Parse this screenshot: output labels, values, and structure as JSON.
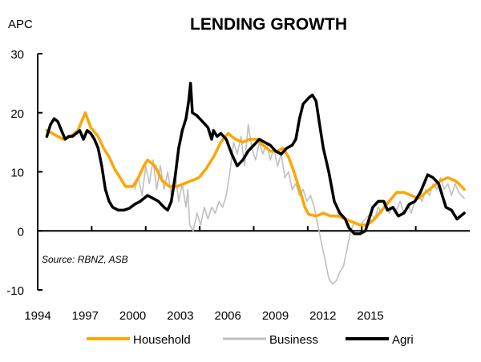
{
  "chart_data": {
    "type": "line",
    "title": "LENDING GROWTH",
    "ylabel": "APC",
    "xlabel": "",
    "source_note": "Source:  RBNZ, ASB",
    "ylim": [
      -10,
      30
    ],
    "yticks": [
      30,
      20,
      10,
      0,
      -10
    ],
    "xlim": [
      1994,
      2017.6
    ],
    "xtick_labels": [
      "1994",
      "1997",
      "2000",
      "2003",
      "2006",
      "2009",
      "2012",
      "2015"
    ],
    "grid": false,
    "legend_position": "bottom",
    "series": [
      {
        "name": "Household",
        "color": "#FFA500",
        "points": [
          [
            1994.5,
            17
          ],
          [
            1994.8,
            16.5
          ],
          [
            1995.1,
            16
          ],
          [
            1995.4,
            15.5
          ],
          [
            1995.8,
            16
          ],
          [
            1996.2,
            17
          ],
          [
            1996.6,
            20
          ],
          [
            1996.9,
            17.5
          ],
          [
            1997.3,
            16
          ],
          [
            1997.6,
            14
          ],
          [
            1997.9,
            12.5
          ],
          [
            1998.2,
            10.5
          ],
          [
            1998.5,
            9
          ],
          [
            1998.8,
            7.5
          ],
          [
            1999.2,
            7.5
          ],
          [
            1999.5,
            9
          ],
          [
            1999.8,
            11
          ],
          [
            2000.0,
            12
          ],
          [
            2000.4,
            11
          ],
          [
            2000.8,
            8.5
          ],
          [
            2001.2,
            7.5
          ],
          [
            2001.6,
            7.5
          ],
          [
            2002.0,
            8
          ],
          [
            2002.4,
            8.5
          ],
          [
            2002.8,
            9
          ],
          [
            2003.2,
            10.5
          ],
          [
            2003.6,
            12.5
          ],
          [
            2004.0,
            15
          ],
          [
            2004.4,
            16.5
          ],
          [
            2004.8,
            15.5
          ],
          [
            2005.2,
            15
          ],
          [
            2005.6,
            15.5
          ],
          [
            2006.0,
            15.5
          ],
          [
            2006.3,
            14.5
          ],
          [
            2006.7,
            13.5
          ],
          [
            2007.1,
            13.5
          ],
          [
            2007.4,
            14
          ],
          [
            2007.7,
            12.5
          ],
          [
            2008.0,
            10
          ],
          [
            2008.3,
            7
          ],
          [
            2008.6,
            4
          ],
          [
            2008.8,
            2.8
          ],
          [
            2009.2,
            2.5
          ],
          [
            2009.6,
            3
          ],
          [
            2010.0,
            2.5
          ],
          [
            2010.4,
            2.5
          ],
          [
            2010.8,
            2
          ],
          [
            2011.2,
            1.5
          ],
          [
            2011.6,
            1
          ],
          [
            2012.0,
            1
          ],
          [
            2012.4,
            2
          ],
          [
            2012.8,
            3.5
          ],
          [
            2013.2,
            5
          ],
          [
            2013.6,
            6.5
          ],
          [
            2014.0,
            6.5
          ],
          [
            2014.4,
            6
          ],
          [
            2014.8,
            5.5
          ],
          [
            2015.2,
            6.5
          ],
          [
            2015.6,
            7.5
          ],
          [
            2016.0,
            8.5
          ],
          [
            2016.4,
            9
          ],
          [
            2016.8,
            8.5
          ],
          [
            2017.0,
            8
          ],
          [
            2017.3,
            7
          ]
        ]
      },
      {
        "name": "Business",
        "color": "#BFBFBF",
        "points": [
          [
            1999.3,
            7
          ],
          [
            1999.5,
            9
          ],
          [
            1999.7,
            6
          ],
          [
            1999.9,
            11
          ],
          [
            2000.1,
            8
          ],
          [
            2000.3,
            12
          ],
          [
            2000.5,
            7
          ],
          [
            2000.7,
            11
          ],
          [
            2000.9,
            7
          ],
          [
            2001.1,
            10
          ],
          [
            2001.3,
            6
          ],
          [
            2001.5,
            10
          ],
          [
            2001.7,
            5
          ],
          [
            2001.9,
            8
          ],
          [
            2002.1,
            4
          ],
          [
            2002.2,
            7
          ],
          [
            2002.3,
            1
          ],
          [
            2002.5,
            0
          ],
          [
            2002.7,
            3
          ],
          [
            2002.9,
            1
          ],
          [
            2003.1,
            4
          ],
          [
            2003.3,
            2
          ],
          [
            2003.5,
            4
          ],
          [
            2003.7,
            3
          ],
          [
            2003.9,
            5
          ],
          [
            2004.1,
            4
          ],
          [
            2004.3,
            6
          ],
          [
            2004.5,
            10
          ],
          [
            2004.7,
            15
          ],
          [
            2004.9,
            13
          ],
          [
            2005.1,
            16
          ],
          [
            2005.3,
            11
          ],
          [
            2005.5,
            18
          ],
          [
            2005.7,
            14
          ],
          [
            2005.9,
            12
          ],
          [
            2006.1,
            15
          ],
          [
            2006.3,
            13
          ],
          [
            2006.5,
            15
          ],
          [
            2006.7,
            12
          ],
          [
            2006.9,
            14
          ],
          [
            2007.1,
            11
          ],
          [
            2007.3,
            13
          ],
          [
            2007.5,
            9
          ],
          [
            2007.7,
            10
          ],
          [
            2007.9,
            7
          ],
          [
            2008.1,
            8
          ],
          [
            2008.3,
            6
          ],
          [
            2008.5,
            7
          ],
          [
            2008.7,
            5
          ],
          [
            2008.9,
            6
          ],
          [
            2009.1,
            4
          ],
          [
            2009.3,
            1
          ],
          [
            2009.5,
            -2
          ],
          [
            2009.7,
            -5
          ],
          [
            2009.9,
            -8
          ],
          [
            2010.1,
            -9
          ],
          [
            2010.3,
            -8.5
          ],
          [
            2010.5,
            -7
          ],
          [
            2010.7,
            -6
          ],
          [
            2010.9,
            -3
          ],
          [
            2011.1,
            0
          ],
          [
            2011.3,
            1.5
          ],
          [
            2011.6,
            1
          ],
          [
            2011.9,
            2
          ],
          [
            2012.2,
            3
          ],
          [
            2012.4,
            2
          ],
          [
            2012.6,
            4
          ],
          [
            2012.8,
            3
          ],
          [
            2013.0,
            5
          ],
          [
            2013.2,
            3
          ],
          [
            2013.4,
            4
          ],
          [
            2013.6,
            3.5
          ],
          [
            2013.8,
            5
          ],
          [
            2014.0,
            3
          ],
          [
            2014.2,
            4.5
          ],
          [
            2014.4,
            3
          ],
          [
            2014.6,
            5
          ],
          [
            2014.8,
            6
          ],
          [
            2015.0,
            5
          ],
          [
            2015.2,
            7
          ],
          [
            2015.4,
            6
          ],
          [
            2015.6,
            8
          ],
          [
            2015.8,
            7
          ],
          [
            2016.0,
            9
          ],
          [
            2016.2,
            7
          ],
          [
            2016.4,
            8
          ],
          [
            2016.6,
            6
          ],
          [
            2016.8,
            8
          ],
          [
            2017.0,
            6.5
          ],
          [
            2017.3,
            5.5
          ]
        ]
      },
      {
        "name": "Agri",
        "color": "#000000",
        "points": [
          [
            1994.5,
            16
          ],
          [
            1994.7,
            18
          ],
          [
            1994.9,
            19
          ],
          [
            1995.1,
            18.5
          ],
          [
            1995.3,
            17
          ],
          [
            1995.5,
            15.5
          ],
          [
            1995.7,
            16
          ],
          [
            1995.9,
            16
          ],
          [
            1996.1,
            16.5
          ],
          [
            1996.3,
            17
          ],
          [
            1996.5,
            15.5
          ],
          [
            1996.7,
            17
          ],
          [
            1996.9,
            16.5
          ],
          [
            1997.1,
            15.5
          ],
          [
            1997.3,
            14
          ],
          [
            1997.5,
            11
          ],
          [
            1997.7,
            7
          ],
          [
            1997.9,
            5
          ],
          [
            1998.1,
            4
          ],
          [
            1998.4,
            3.5
          ],
          [
            1998.7,
            3.5
          ],
          [
            1999.0,
            3.8
          ],
          [
            1999.3,
            4.5
          ],
          [
            1999.6,
            5
          ],
          [
            1999.8,
            5.5
          ],
          [
            2000.0,
            6
          ],
          [
            2000.3,
            5.5
          ],
          [
            2000.6,
            5
          ],
          [
            2000.9,
            4
          ],
          [
            2001.1,
            3.5
          ],
          [
            2001.3,
            5
          ],
          [
            2001.5,
            9
          ],
          [
            2001.7,
            14
          ],
          [
            2001.9,
            17
          ],
          [
            2002.1,
            19
          ],
          [
            2002.25,
            22
          ],
          [
            2002.35,
            25
          ],
          [
            2002.45,
            20
          ],
          [
            2002.7,
            19.5
          ],
          [
            2003.0,
            18.5
          ],
          [
            2003.3,
            17.5
          ],
          [
            2003.5,
            15.5
          ],
          [
            2003.6,
            17
          ],
          [
            2003.8,
            16
          ],
          [
            2004.0,
            16.5
          ],
          [
            2004.3,
            15.5
          ],
          [
            2004.6,
            13
          ],
          [
            2004.9,
            11
          ],
          [
            2005.2,
            12
          ],
          [
            2005.5,
            13.5
          ],
          [
            2005.8,
            14.5
          ],
          [
            2006.1,
            15.5
          ],
          [
            2006.4,
            15
          ],
          [
            2006.7,
            14.5
          ],
          [
            2007.0,
            13.5
          ],
          [
            2007.3,
            13
          ],
          [
            2007.6,
            14
          ],
          [
            2007.9,
            14.5
          ],
          [
            2008.1,
            15.5
          ],
          [
            2008.3,
            19
          ],
          [
            2008.5,
            21.5
          ],
          [
            2008.8,
            22.5
          ],
          [
            2009.0,
            23
          ],
          [
            2009.2,
            22
          ],
          [
            2009.4,
            18
          ],
          [
            2009.6,
            14
          ],
          [
            2009.9,
            10
          ],
          [
            2010.2,
            5
          ],
          [
            2010.5,
            3
          ],
          [
            2010.8,
            2
          ],
          [
            2011.0,
            0.5
          ],
          [
            2011.3,
            -0.5
          ],
          [
            2011.6,
            -0.5
          ],
          [
            2011.9,
            0
          ],
          [
            2012.1,
            2
          ],
          [
            2012.3,
            4
          ],
          [
            2012.6,
            5
          ],
          [
            2012.9,
            5
          ],
          [
            2013.1,
            3.5
          ],
          [
            2013.4,
            4
          ],
          [
            2013.7,
            2.5
          ],
          [
            2014.0,
            3
          ],
          [
            2014.3,
            4.5
          ],
          [
            2014.6,
            5
          ],
          [
            2014.9,
            6.5
          ],
          [
            2015.1,
            8
          ],
          [
            2015.3,
            9.5
          ],
          [
            2015.6,
            9
          ],
          [
            2015.9,
            8
          ],
          [
            2016.1,
            6
          ],
          [
            2016.3,
            4
          ],
          [
            2016.6,
            3.5
          ],
          [
            2016.9,
            2
          ],
          [
            2017.1,
            2.5
          ],
          [
            2017.3,
            3
          ]
        ]
      }
    ]
  }
}
